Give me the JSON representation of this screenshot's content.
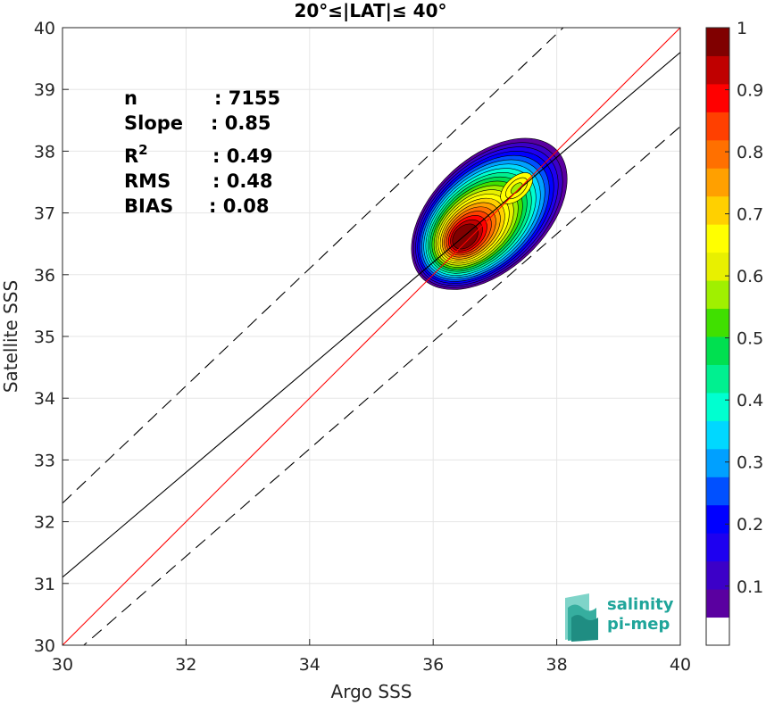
{
  "chart_data": {
    "type": "heatmap",
    "subtype": "density-contour-scatter",
    "title": "20°≤|LAT|≤ 40°",
    "xlabel": "Argo SSS",
    "ylabel": "Satellite SSS",
    "xlim": [
      30,
      40
    ],
    "ylim": [
      30,
      40
    ],
    "xticks": [
      "30",
      "32",
      "34",
      "36",
      "38",
      "40"
    ],
    "yticks": [
      "30",
      "31",
      "32",
      "33",
      "34",
      "35",
      "36",
      "37",
      "38",
      "39",
      "40"
    ],
    "grid": true,
    "stats": [
      {
        "key": "n",
        "sup": "",
        "value": ": 7155"
      },
      {
        "key": "Slope",
        "sup": "",
        "value": ": 0.85"
      },
      {
        "key": "R",
        "sup": "2",
        "value": ": 0.49"
      },
      {
        "key": "RMS",
        "sup": "",
        "value": ": 0.48"
      },
      {
        "key": "BIAS",
        "sup": "",
        "value": ": 0.08"
      }
    ],
    "lines": {
      "identity": {
        "x": [
          30,
          40
        ],
        "y": [
          30,
          40
        ],
        "color": "#ff0000"
      },
      "regression": {
        "x": [
          30,
          40
        ],
        "y": [
          31.1,
          39.6
        ],
        "color": "#000000"
      },
      "upper_bound": {
        "x": [
          30,
          40
        ],
        "y": [
          32.3,
          41.8
        ],
        "color": "#000000",
        "style": "dashed"
      },
      "lower_bound": {
        "x": [
          30,
          40
        ],
        "y": [
          29.7,
          38.4
        ],
        "color": "#000000",
        "style": "dashed"
      }
    },
    "density_centers": [
      {
        "x": 36.5,
        "y": 36.6,
        "level": 1.0
      },
      {
        "x": 37.35,
        "y": 37.4,
        "level": 0.65
      }
    ],
    "colorbar": {
      "min": 0,
      "max": 1,
      "ticks": [
        "0.1",
        "0.2",
        "0.3",
        "0.4",
        "0.5",
        "0.6",
        "0.7",
        "0.8",
        "0.9",
        "1"
      ],
      "levels": 20,
      "colors": [
        "#ffffff",
        "#5a00a0",
        "#3c00c8",
        "#1e00f0",
        "#0000ff",
        "#0050ff",
        "#00a0ff",
        "#00d8ff",
        "#00ffd0",
        "#00f090",
        "#00e050",
        "#40e000",
        "#a0f000",
        "#e8f000",
        "#ffff00",
        "#ffd000",
        "#ffa000",
        "#ff7000",
        "#ff4000",
        "#ff0000",
        "#c00000",
        "#800000"
      ]
    }
  },
  "logo": {
    "line1": "salinity",
    "line2": "pi-mep"
  }
}
